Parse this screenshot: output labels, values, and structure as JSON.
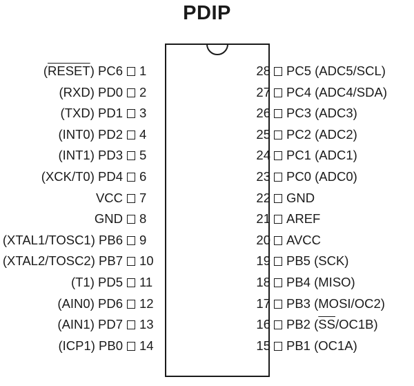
{
  "title": "PDIP",
  "pins": {
    "left": [
      {
        "num": "1",
        "pre": "(",
        "over": "RESET",
        "post": ") PC6"
      },
      {
        "num": "2",
        "pre": "(RXD) PD0",
        "over": "",
        "post": ""
      },
      {
        "num": "3",
        "pre": "(TXD) PD1",
        "over": "",
        "post": ""
      },
      {
        "num": "4",
        "pre": "(INT0) PD2",
        "over": "",
        "post": ""
      },
      {
        "num": "5",
        "pre": "(INT1) PD3",
        "over": "",
        "post": ""
      },
      {
        "num": "6",
        "pre": "(XCK/T0) PD4",
        "over": "",
        "post": ""
      },
      {
        "num": "7",
        "pre": "VCC",
        "over": "",
        "post": ""
      },
      {
        "num": "8",
        "pre": "GND",
        "over": "",
        "post": ""
      },
      {
        "num": "9",
        "pre": "(XTAL1/TOSC1) PB6",
        "over": "",
        "post": ""
      },
      {
        "num": "10",
        "pre": "(XTAL2/TOSC2) PB7",
        "over": "",
        "post": ""
      },
      {
        "num": "11",
        "pre": "(T1) PD5",
        "over": "",
        "post": ""
      },
      {
        "num": "12",
        "pre": "(AIN0) PD6",
        "over": "",
        "post": ""
      },
      {
        "num": "13",
        "pre": "(AIN1) PD7",
        "over": "",
        "post": ""
      },
      {
        "num": "14",
        "pre": "(ICP1) PB0",
        "over": "",
        "post": ""
      }
    ],
    "right": [
      {
        "num": "28",
        "pre": "PC5 (ADC5/SCL)",
        "over": "",
        "post": ""
      },
      {
        "num": "27",
        "pre": "PC4 (ADC4/SDA)",
        "over": "",
        "post": ""
      },
      {
        "num": "26",
        "pre": "PC3 (ADC3)",
        "over": "",
        "post": ""
      },
      {
        "num": "25",
        "pre": "PC2 (ADC2)",
        "over": "",
        "post": ""
      },
      {
        "num": "24",
        "pre": "PC1 (ADC1)",
        "over": "",
        "post": ""
      },
      {
        "num": "23",
        "pre": "PC0 (ADC0)",
        "over": "",
        "post": ""
      },
      {
        "num": "22",
        "pre": "GND",
        "over": "",
        "post": ""
      },
      {
        "num": "21",
        "pre": "AREF",
        "over": "",
        "post": ""
      },
      {
        "num": "20",
        "pre": "AVCC",
        "over": "",
        "post": ""
      },
      {
        "num": "19",
        "pre": "PB5 (SCK)",
        "over": "",
        "post": ""
      },
      {
        "num": "18",
        "pre": "PB4 (MISO)",
        "over": "",
        "post": ""
      },
      {
        "num": "17",
        "pre": "PB3 (MOSI/OC2)",
        "over": "",
        "post": ""
      },
      {
        "num": "16",
        "pre": "PB2 (",
        "over": "SS",
        "post": "/OC1B)"
      },
      {
        "num": "15",
        "pre": "PB1 (OC1A)",
        "over": "",
        "post": ""
      }
    ]
  }
}
